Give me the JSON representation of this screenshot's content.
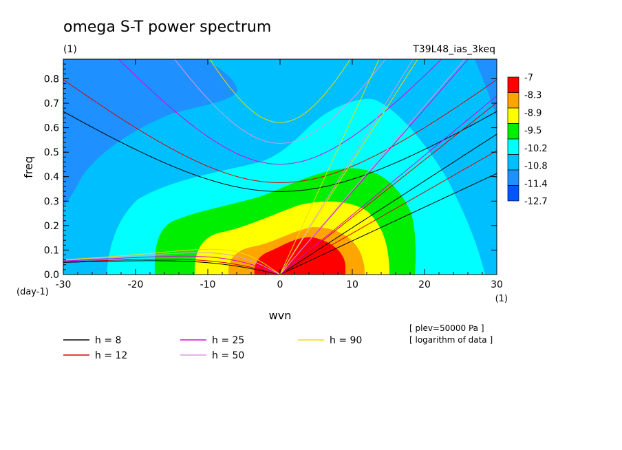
{
  "chart_data": {
    "type": "heatmap",
    "title": "omega S-T power spectrum",
    "subtitle_left": "(1)",
    "subtitle_right": "T39L48_ias_3keq",
    "xlabel": "wvn",
    "ylabel": "freq",
    "x_unit": "(1)",
    "y_unit": "(day-1)",
    "xlim": [
      -30,
      30
    ],
    "ylim": [
      0,
      0.88
    ],
    "xticks": [
      -30,
      -20,
      -10,
      0,
      10,
      20,
      30
    ],
    "yticks": [
      0.0,
      0.1,
      0.2,
      0.3,
      0.4,
      0.5,
      0.6,
      0.7,
      0.8
    ],
    "xtick_labels": [
      "-30",
      "-20",
      "-10",
      "0",
      "10",
      "20",
      "30"
    ],
    "ytick_labels": [
      "0.0",
      "0.1",
      "0.2",
      "0.3",
      "0.4",
      "0.5",
      "0.6",
      "0.7",
      "0.8"
    ],
    "colorbar": {
      "levels": [
        "-7",
        "-8.3",
        "-8.9",
        "-9.5",
        "-10.2",
        "-10.8",
        "-11.4",
        "-12.7"
      ],
      "colors": [
        "#ff0000",
        "#ffa500",
        "#ffff00",
        "#00ee00",
        "#00ffff",
        "#00bfff",
        "#1e90ff",
        "#0055ff"
      ]
    },
    "dispersion_curves": [
      {
        "name": "h =  8",
        "h": 8,
        "color": "#000000"
      },
      {
        "name": "h = 12",
        "h": 12,
        "color": "#dd0000"
      },
      {
        "name": "h = 25",
        "h": 25,
        "color": "#dd00dd"
      },
      {
        "name": "h = 50",
        "h": 50,
        "color": "#dd99dd"
      },
      {
        "name": "h = 90",
        "h": 90,
        "color": "#eedd00"
      }
    ],
    "annotations": [
      "[ plev=50000 Pa ]",
      "[ logarithm of data ]"
    ]
  }
}
